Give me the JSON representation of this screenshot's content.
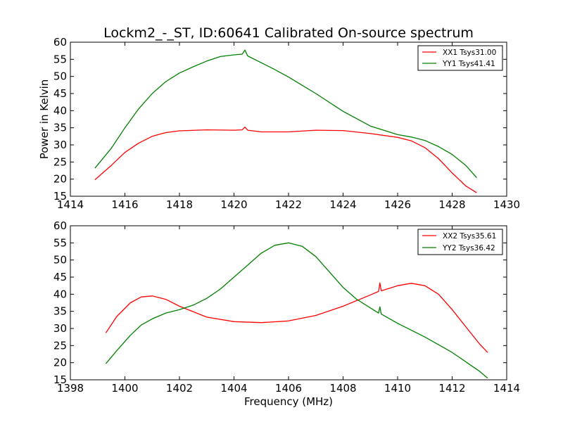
{
  "chart_data": [
    {
      "type": "line",
      "title": "Lockm2_-_ST, ID:60641 Calibrated On-source spectrum",
      "xlabel": "",
      "ylabel": "Power in Kelvin",
      "xlim": [
        1414,
        1430
      ],
      "ylim": [
        15,
        60
      ],
      "xticks": [
        "1414",
        "1416",
        "1418",
        "1420",
        "1422",
        "1424",
        "1426",
        "1428",
        "1430"
      ],
      "yticks": [
        "15",
        "20",
        "25",
        "30",
        "35",
        "40",
        "45",
        "50",
        "55",
        "60"
      ],
      "grid": false,
      "legend_position": "top-right",
      "series": [
        {
          "name": "XX1 Tsys31.00",
          "color": "#ff0000",
          "x": [
            1414.9,
            1415.5,
            1416.0,
            1416.5,
            1417.0,
            1417.5,
            1418.0,
            1419.0,
            1420.0,
            1420.3,
            1420.4,
            1420.5,
            1421.0,
            1422.0,
            1423.0,
            1424.0,
            1425.0,
            1426.0,
            1426.5,
            1427.0,
            1427.5,
            1428.0,
            1428.5,
            1428.9
          ],
          "y": [
            19.8,
            24.0,
            27.8,
            30.5,
            32.5,
            33.6,
            34.1,
            34.4,
            34.3,
            34.4,
            35.2,
            34.3,
            33.8,
            33.8,
            34.3,
            34.2,
            33.3,
            32.2,
            31.2,
            29.2,
            26.0,
            21.8,
            18.0,
            16.0
          ]
        },
        {
          "name": "YY1 Tsys41.41",
          "color": "#008000",
          "x": [
            1414.9,
            1415.5,
            1416.0,
            1416.5,
            1417.0,
            1417.5,
            1418.0,
            1418.5,
            1419.0,
            1419.5,
            1420.0,
            1420.3,
            1420.4,
            1420.5,
            1421.0,
            1421.5,
            1422.0,
            1423.0,
            1424.0,
            1425.0,
            1426.0,
            1426.5,
            1427.0,
            1427.5,
            1428.0,
            1428.5,
            1428.9
          ],
          "y": [
            23.2,
            29.0,
            35.0,
            40.5,
            45.0,
            48.5,
            51.0,
            52.8,
            54.5,
            55.8,
            56.3,
            56.5,
            57.7,
            56.0,
            54.0,
            52.0,
            49.8,
            45.0,
            39.8,
            35.5,
            33.0,
            32.3,
            31.3,
            29.5,
            27.2,
            24.0,
            20.4
          ]
        }
      ]
    },
    {
      "type": "line",
      "title": "",
      "xlabel": "Frequency (MHz)",
      "ylabel": "",
      "xlim": [
        1398,
        1414
      ],
      "ylim": [
        15,
        60
      ],
      "xticks": [
        "1398",
        "1400",
        "1402",
        "1404",
        "1406",
        "1408",
        "1410",
        "1412",
        "1414"
      ],
      "yticks": [
        "15",
        "20",
        "25",
        "30",
        "35",
        "40",
        "45",
        "50",
        "55",
        "60"
      ],
      "grid": false,
      "legend_position": "top-right",
      "series": [
        {
          "name": "XX2 Tsys35.61",
          "color": "#ff0000",
          "x": [
            1399.3,
            1399.7,
            1400.2,
            1400.6,
            1401.0,
            1401.5,
            1402.0,
            1403.0,
            1404.0,
            1405.0,
            1406.0,
            1407.0,
            1408.0,
            1409.0,
            1409.3,
            1409.35,
            1409.4,
            1410.0,
            1410.5,
            1411.0,
            1411.5,
            1412.0,
            1412.5,
            1413.0,
            1413.3
          ],
          "y": [
            28.7,
            33.5,
            37.5,
            39.2,
            39.5,
            38.5,
            36.5,
            33.3,
            32.0,
            31.7,
            32.2,
            33.8,
            36.5,
            39.8,
            40.8,
            43.3,
            41.0,
            42.5,
            43.2,
            42.5,
            40.0,
            35.5,
            30.5,
            25.5,
            23.0
          ]
        },
        {
          "name": "YY2 Tsys36.42",
          "color": "#008000",
          "x": [
            1399.3,
            1399.7,
            1400.2,
            1400.6,
            1401.0,
            1401.5,
            1402.0,
            1402.5,
            1403.0,
            1403.5,
            1404.0,
            1404.5,
            1405.0,
            1405.5,
            1406.0,
            1406.5,
            1407.0,
            1407.5,
            1408.0,
            1408.5,
            1409.0,
            1409.3,
            1409.35,
            1409.4,
            1410.0,
            1411.0,
            1412.0,
            1413.0,
            1413.3
          ],
          "y": [
            19.7,
            23.5,
            28.0,
            31.0,
            32.8,
            34.5,
            35.5,
            36.8,
            38.8,
            41.5,
            45.0,
            48.5,
            52.0,
            54.3,
            55.0,
            54.0,
            51.0,
            46.5,
            42.0,
            38.5,
            36.0,
            34.5,
            36.3,
            34.2,
            31.5,
            27.5,
            23.0,
            17.5,
            15.5
          ]
        }
      ]
    }
  ]
}
